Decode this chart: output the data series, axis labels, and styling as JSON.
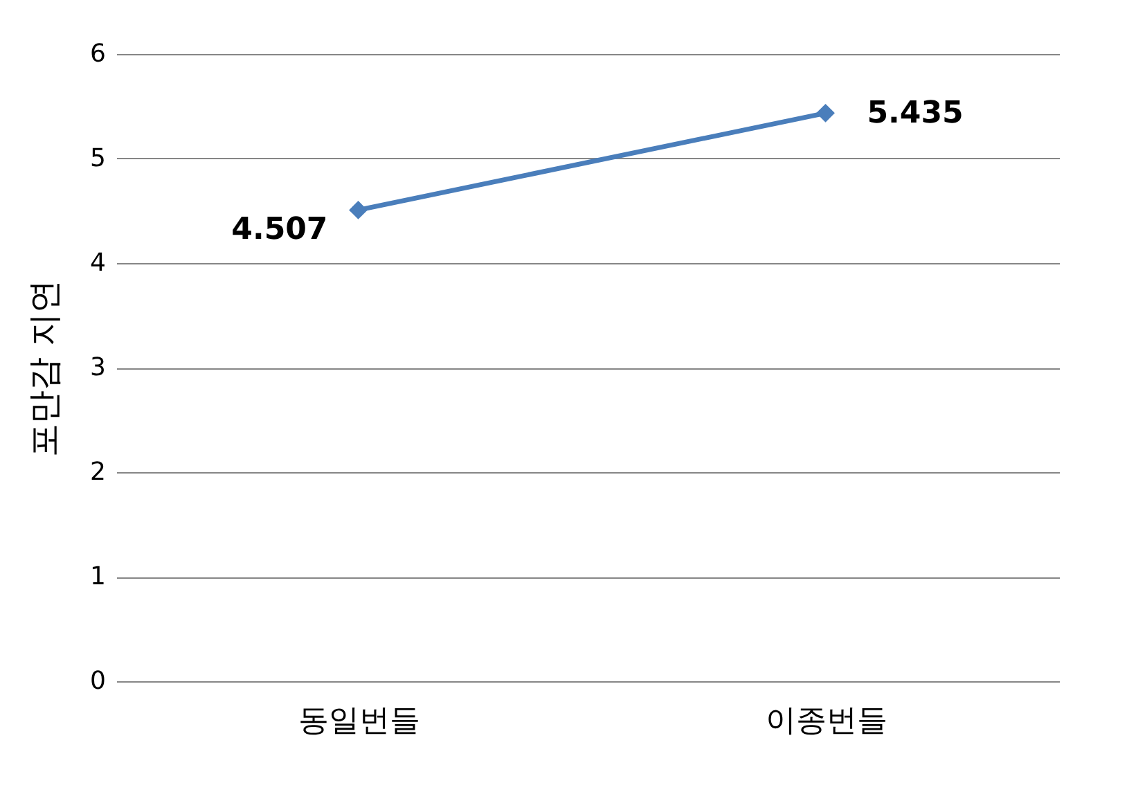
{
  "chart_data": {
    "type": "line",
    "ylabel": "포만감 지연",
    "categories": [
      "동일번들",
      "이종번들"
    ],
    "series": [
      {
        "color": "#4a7ebb",
        "values": [
          4.507,
          5.435
        ]
      }
    ],
    "ylim": [
      0,
      6
    ],
    "yticks": [
      0,
      1,
      2,
      3,
      4,
      5,
      6
    ],
    "grid": "y",
    "marker": "diamond",
    "line_style": "solid",
    "data_labels": true
  }
}
